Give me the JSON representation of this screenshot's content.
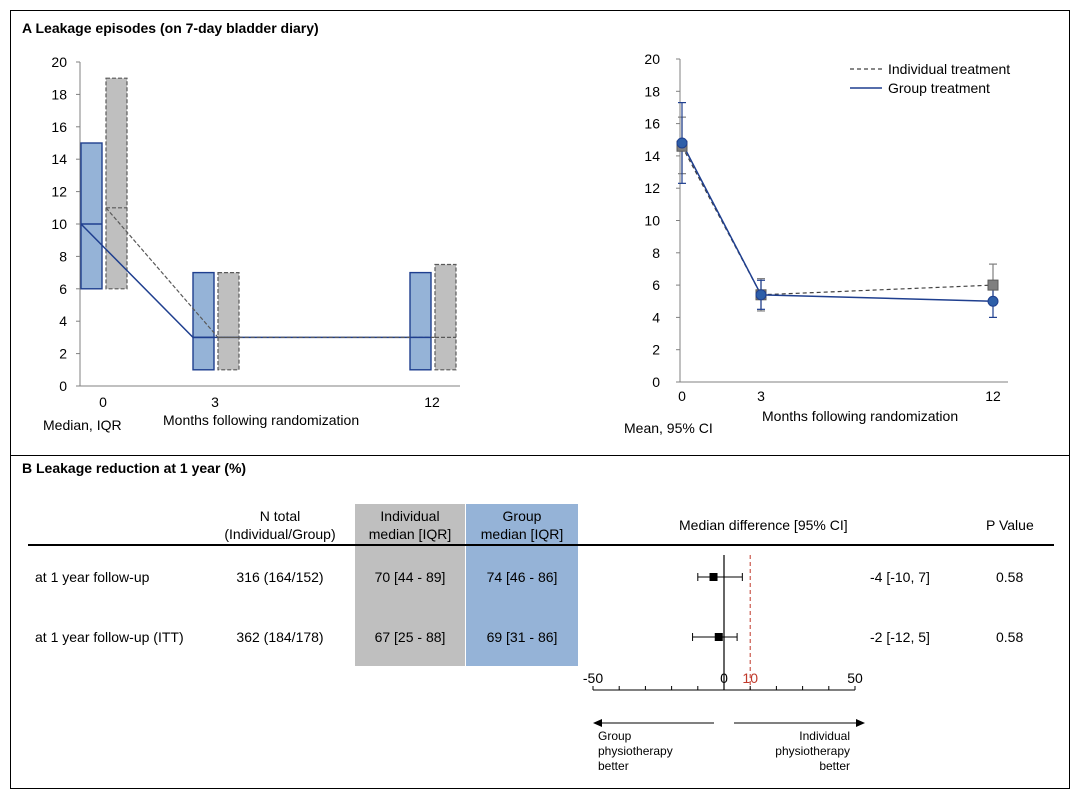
{
  "panel_a": {
    "title": "A Leakage episodes (on 7-day bladder diary)",
    "left": {
      "corner_label": "Median, IQR",
      "xlabel": "Months following randomization"
    },
    "right": {
      "corner_label": "Mean, 95% CI",
      "xlabel": "Months following randomization"
    }
  },
  "panel_b": {
    "title": "B Leakage reduction at 1 year (%)",
    "headers": {
      "n_total_1": "N total",
      "n_total_2": "(Individual/Group)",
      "indiv_1": "Individual",
      "indiv_2": "median [IQR]",
      "group_1": "Group",
      "group_2": "median [IQR]",
      "diff": "Median difference [95% CI]",
      "p": "P Value"
    },
    "rows": [
      {
        "label": "at 1 year follow-up",
        "n": "316 (164/152)",
        "indiv": "70 [44 - 89]",
        "group": "74 [46 - 86]",
        "diff": "-4 [-10, 7]",
        "p": "0.58"
      },
      {
        "label": "at 1 year follow-up (ITT)",
        "n": "362 (184/178)",
        "indiv": "67 [25 - 88]",
        "group": "69 [31 - 86]",
        "diff": "-2 [-12, 5]",
        "p": "0.58"
      }
    ],
    "left_arrow_text": [
      "Group",
      "physiotherapy",
      "better"
    ],
    "right_arrow_text": [
      "Individual",
      "physiotherapy",
      "better"
    ]
  },
  "colors": {
    "group_fill": "#95b3d7",
    "group_line": "#1f3f8f",
    "individual_fill": "#bfbfbf",
    "individual_line": "#595959",
    "reference_line": "#c0392b"
  },
  "chart_data": [
    {
      "type": "box",
      "x_categories": [
        "0",
        "3",
        "12"
      ],
      "ylim": [
        0,
        20
      ],
      "yticks": [
        0,
        2,
        4,
        6,
        8,
        10,
        12,
        14,
        16,
        18,
        20
      ],
      "series": [
        {
          "name": "Group treatment",
          "q1": [
            6,
            1,
            1
          ],
          "median": [
            10,
            3,
            3
          ],
          "q3": [
            15,
            7,
            7
          ]
        },
        {
          "name": "Individual treatment",
          "q1": [
            6,
            1,
            1
          ],
          "median": [
            11,
            3,
            3
          ],
          "q3": [
            19,
            7,
            7.5
          ]
        }
      ]
    },
    {
      "type": "line",
      "x_categories": [
        "0",
        "3",
        "12"
      ],
      "ylim": [
        0,
        20
      ],
      "yticks": [
        0,
        2,
        4,
        6,
        8,
        10,
        12,
        14,
        16,
        18,
        20
      ],
      "series": [
        {
          "name": "Individual treatment",
          "mean": [
            14.6,
            5.4,
            6.0
          ],
          "ci_low": [
            12.9,
            4.4,
            4.8
          ],
          "ci_high": [
            16.4,
            6.4,
            7.3
          ]
        },
        {
          "name": "Group treatment",
          "mean": [
            14.8,
            5.4,
            5.0
          ],
          "ci_low": [
            12.3,
            4.5,
            4.0
          ],
          "ci_high": [
            17.3,
            6.3,
            6.0
          ]
        }
      ]
    },
    {
      "type": "forest",
      "xlim": [
        -50,
        50
      ],
      "xticks": [
        -50,
        0,
        10,
        50
      ],
      "reference_value": 10,
      "points": [
        {
          "estimate": -4,
          "ci_low": -10,
          "ci_high": 7
        },
        {
          "estimate": -2,
          "ci_low": -12,
          "ci_high": 5
        }
      ]
    }
  ]
}
